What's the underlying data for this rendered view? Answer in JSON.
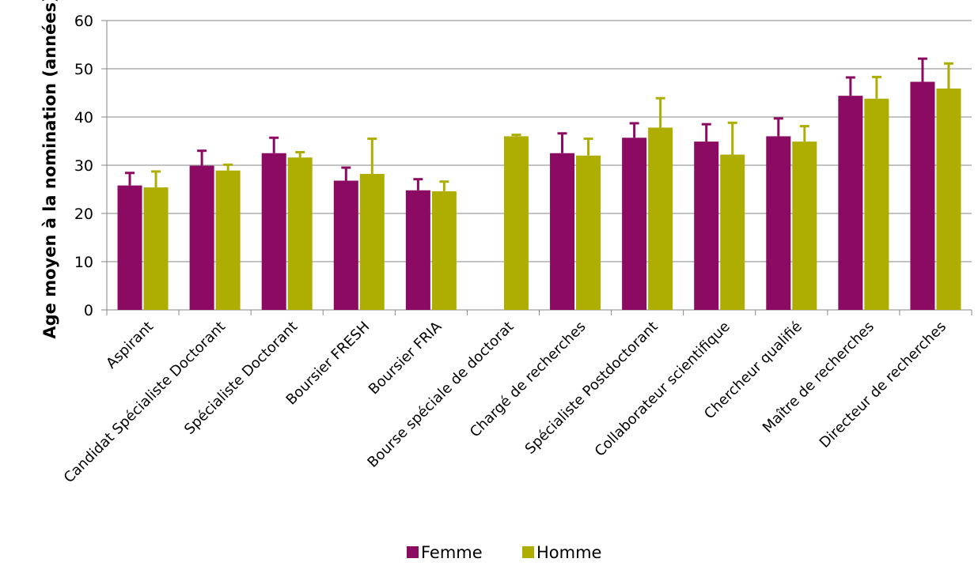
{
  "chart_data": {
    "type": "bar",
    "title": "",
    "xlabel": "",
    "ylabel": "Age moyen à la nomination (années)",
    "ylim": [
      0,
      60
    ],
    "yticks": [
      0,
      10,
      20,
      30,
      40,
      50,
      60
    ],
    "grid": true,
    "legend_position": "bottom",
    "categories": [
      "Aspirant",
      "Candidat Spécialiste Doctorant",
      "Spécialiste Doctorant",
      "Boursier FRESH",
      "Boursier FRIA",
      "Bourse spéciale de doctorat",
      "Chargé de recherches",
      "Spécialiste Postdoctorant",
      "Collaborateur scientifique",
      "Chercheur qualifié",
      "Maître de recherches",
      "Directeur de recherches"
    ],
    "series": [
      {
        "name": "Femme",
        "color": "#8B0A62",
        "values": [
          25.8,
          29.9,
          32.5,
          26.8,
          24.8,
          null,
          32.5,
          35.7,
          34.9,
          36.0,
          44.4,
          47.3
        ],
        "error": [
          2.6,
          3.1,
          3.2,
          2.7,
          2.3,
          null,
          4.1,
          3.0,
          3.6,
          3.7,
          3.8,
          4.8
        ]
      },
      {
        "name": "Homme",
        "color": "#AEAD02",
        "values": [
          25.4,
          28.9,
          31.6,
          28.2,
          24.6,
          36.0,
          32.0,
          37.8,
          32.2,
          34.9,
          43.8,
          45.9
        ],
        "error": [
          3.3,
          1.2,
          1.1,
          7.3,
          2.0,
          0.3,
          3.5,
          6.1,
          6.6,
          3.2,
          4.5,
          5.2
        ]
      }
    ]
  }
}
